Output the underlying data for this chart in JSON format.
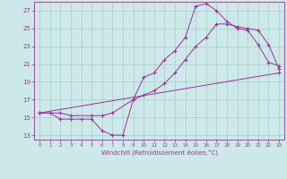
{
  "xlabel": "Windchill (Refroidissement éolien,°C)",
  "bg_color": "#cce8e8",
  "line_color": "#993399",
  "grid_color": "#aacccc",
  "xlim": [
    -0.5,
    23.5
  ],
  "ylim": [
    12.5,
    28.0
  ],
  "xticks": [
    0,
    1,
    2,
    3,
    4,
    5,
    6,
    7,
    8,
    9,
    10,
    11,
    12,
    13,
    14,
    15,
    16,
    17,
    18,
    19,
    20,
    21,
    22,
    23
  ],
  "yticks": [
    13,
    15,
    17,
    19,
    21,
    23,
    25,
    27
  ],
  "line1_x": [
    0,
    1,
    2,
    3,
    4,
    5,
    6,
    7,
    8,
    9,
    10,
    11,
    12,
    13,
    14,
    15,
    16,
    17,
    18,
    19,
    20,
    21,
    22,
    23
  ],
  "line1_y": [
    15.5,
    15.5,
    14.8,
    14.8,
    14.8,
    14.8,
    13.5,
    13.0,
    13.0,
    17.0,
    19.5,
    20.0,
    21.5,
    22.5,
    24.0,
    27.5,
    27.8,
    27.0,
    25.8,
    25.0,
    24.8,
    23.2,
    21.2,
    20.8
  ],
  "line2_x": [
    0,
    2,
    3,
    5,
    6,
    7,
    9,
    10,
    11,
    12,
    13,
    14,
    15,
    16,
    17,
    18,
    19,
    20,
    21,
    22,
    23
  ],
  "line2_y": [
    15.5,
    15.5,
    15.2,
    15.2,
    15.2,
    15.5,
    17.0,
    17.5,
    18.0,
    18.8,
    20.0,
    21.5,
    23.0,
    24.0,
    25.5,
    25.5,
    25.2,
    25.0,
    24.8,
    23.2,
    20.5
  ],
  "line3_x": [
    0,
    23
  ],
  "line3_y": [
    15.5,
    20.0
  ]
}
